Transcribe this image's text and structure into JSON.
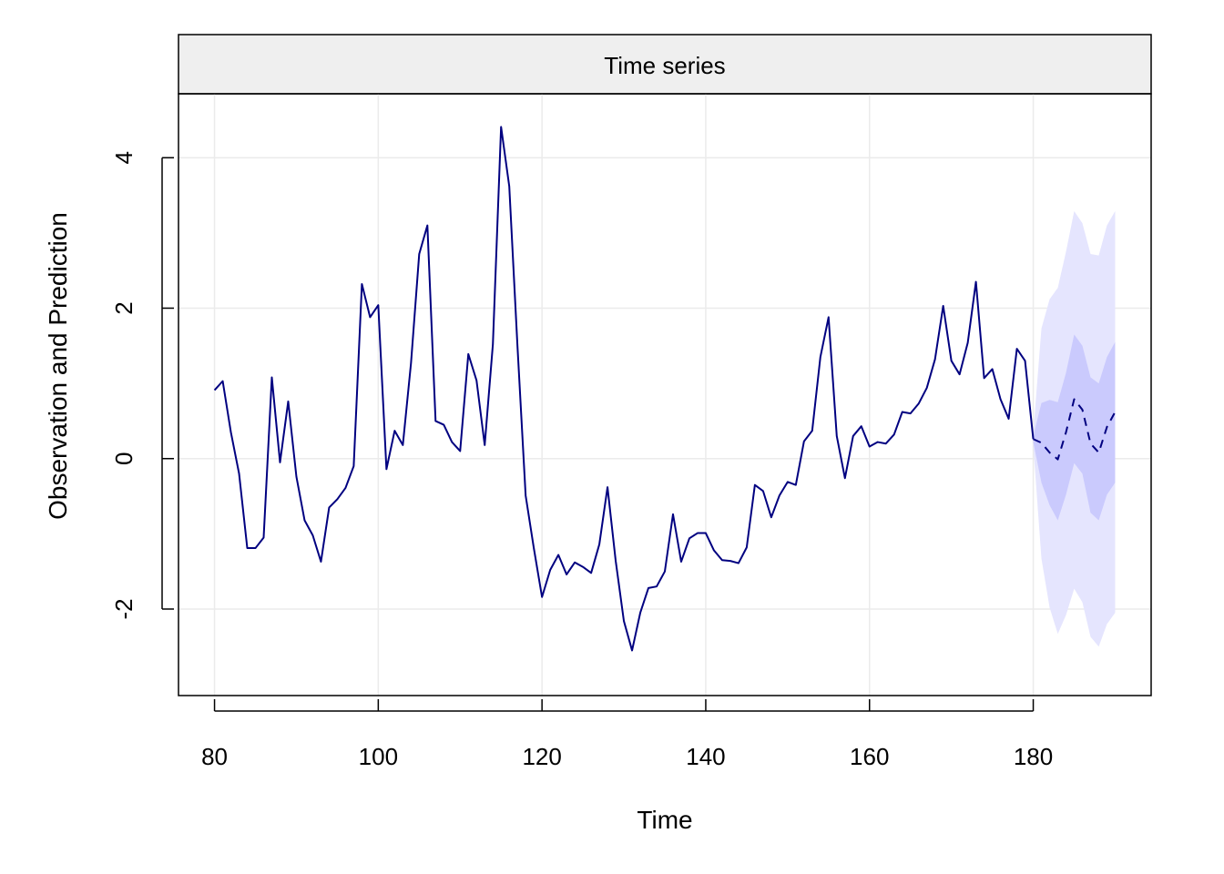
{
  "chart_data": {
    "type": "line",
    "title": "Time series",
    "xlabel": "Time",
    "ylabel": "Observation and Prediction",
    "xlim": [
      75.6,
      194.4
    ],
    "ylim": [
      -3.15,
      4.85
    ],
    "x_ticks": [
      80,
      100,
      120,
      140,
      160,
      180
    ],
    "y_ticks": [
      -2,
      0,
      2,
      4
    ],
    "x_tick_labels": [
      "80",
      "100",
      "120",
      "140",
      "160",
      "180"
    ],
    "y_tick_labels": [
      "-2",
      "0",
      "2",
      "4"
    ],
    "grid": true,
    "series": [
      {
        "role": "observed",
        "line_style": "solid",
        "x": [
          80,
          81,
          82,
          83,
          84,
          85,
          86,
          87,
          88,
          89,
          90,
          91,
          92,
          93,
          94,
          95,
          96,
          97,
          98,
          99,
          100,
          101,
          102,
          103,
          104,
          105,
          106,
          107,
          108,
          109,
          110,
          111,
          112,
          113,
          114,
          115,
          116,
          117,
          118,
          119,
          120,
          121,
          122,
          123,
          124,
          125,
          126,
          127,
          128,
          129,
          130,
          131,
          132,
          133,
          134,
          135,
          136,
          137,
          138,
          139,
          140,
          141,
          142,
          143,
          144,
          145,
          146,
          147,
          148,
          149,
          150,
          151,
          152,
          153,
          154,
          155,
          156,
          157,
          158,
          159,
          160,
          161,
          162,
          163,
          164,
          165,
          166,
          167,
          168,
          169,
          170,
          171,
          172,
          173,
          174,
          175,
          176,
          177,
          178,
          179,
          180
        ],
        "y": [
          0.91,
          1.03,
          0.35,
          -0.2,
          -1.19,
          -1.19,
          -1.05,
          1.08,
          -0.05,
          0.76,
          -0.24,
          -0.82,
          -1.02,
          -1.37,
          -0.65,
          -0.54,
          -0.39,
          -0.1,
          2.32,
          1.88,
          2.04,
          -0.14,
          0.37,
          0.18,
          1.27,
          2.72,
          3.1,
          0.5,
          0.45,
          0.22,
          0.1,
          1.39,
          1.04,
          0.18,
          1.52,
          4.41,
          3.62,
          1.5,
          -0.49,
          -1.19,
          -1.84,
          -1.48,
          -1.28,
          -1.54,
          -1.38,
          -1.44,
          -1.52,
          -1.14,
          -0.38,
          -1.36,
          -2.16,
          -2.55,
          -2.05,
          -1.72,
          -1.7,
          -1.5,
          -0.74,
          -1.37,
          -1.06,
          -0.99,
          -0.99,
          -1.22,
          -1.35,
          -1.36,
          -1.39,
          -1.18,
          -0.35,
          -0.43,
          -0.78,
          -0.49,
          -0.31,
          -0.35,
          0.23,
          0.37,
          1.35,
          1.88,
          0.3,
          -0.26,
          0.3,
          0.43,
          0.16,
          0.22,
          0.2,
          0.32,
          0.62,
          0.6,
          0.73,
          0.94,
          1.32,
          2.03,
          1.3,
          1.12,
          1.54,
          2.35,
          1.07,
          1.19,
          0.79,
          0.53,
          1.46,
          1.3,
          0.26
        ]
      },
      {
        "role": "prediction",
        "line_style": "dashed",
        "x": [
          180,
          181,
          182,
          183,
          184,
          185,
          186,
          187,
          188,
          189,
          190
        ],
        "y": [
          0.26,
          0.21,
          0.08,
          -0.01,
          0.35,
          0.79,
          0.65,
          0.2,
          0.08,
          0.42,
          0.62
        ]
      }
    ],
    "bands": [
      {
        "level": "outer",
        "x": [
          180,
          181,
          182,
          183,
          184,
          185,
          186,
          187,
          188,
          189,
          190
        ],
        "upper": [
          0.35,
          1.73,
          2.12,
          2.27,
          2.75,
          3.29,
          3.13,
          2.72,
          2.7,
          3.1,
          3.29
        ],
        "lower": [
          0.17,
          -1.33,
          -1.98,
          -2.33,
          -2.08,
          -1.73,
          -1.91,
          -2.37,
          -2.5,
          -2.2,
          -2.05
        ]
      },
      {
        "level": "inner",
        "x": [
          180,
          181,
          182,
          183,
          184,
          185,
          186,
          187,
          188,
          189,
          190
        ],
        "upper": [
          0.3,
          0.74,
          0.78,
          0.75,
          1.14,
          1.65,
          1.5,
          1.08,
          1.0,
          1.35,
          1.55
        ],
        "lower": [
          0.22,
          -0.32,
          -0.62,
          -0.82,
          -0.48,
          -0.06,
          -0.2,
          -0.72,
          -0.82,
          -0.48,
          -0.32
        ]
      }
    ],
    "colors": {
      "line": "#000080",
      "band_outer": "#e5e5fe",
      "band_inner": "#cacafd",
      "grid": "#ebebeb",
      "strip_bg": "#efefef",
      "frame": "#000000"
    }
  }
}
